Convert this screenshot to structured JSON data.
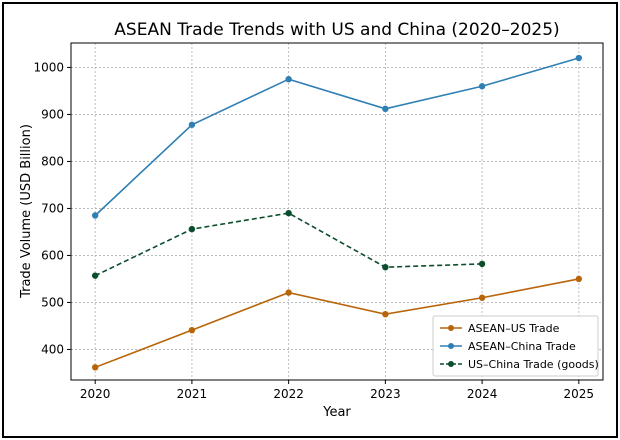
{
  "chart_data": {
    "type": "line",
    "title": "ASEAN Trade Trends with US and China (2020–2025)",
    "xlabel": "Year",
    "ylabel": "Trade Volume (USD Billion)",
    "x": [
      2020,
      2021,
      2022,
      2023,
      2024,
      2025
    ],
    "xlim": [
      2019.75,
      2025.25
    ],
    "ylim": [
      335,
      1052
    ],
    "yticks": [
      400,
      500,
      600,
      700,
      800,
      900,
      1000
    ],
    "grid": true,
    "legend_position": "bottom-right",
    "series": [
      {
        "name": "ASEAN–US Trade",
        "color": "#b8650a",
        "dash": "solid",
        "x": [
          2020,
          2021,
          2022,
          2023,
          2024,
          2025
        ],
        "values": [
          362,
          441,
          521,
          475,
          510,
          550
        ]
      },
      {
        "name": "ASEAN–China Trade",
        "color": "#2f7fb5",
        "dash": "solid",
        "x": [
          2020,
          2021,
          2022,
          2023,
          2024,
          2025
        ],
        "values": [
          685,
          878,
          975,
          912,
          960,
          1020
        ]
      },
      {
        "name": "US–China Trade (goods)",
        "color": "#0b4d2c",
        "dash": "dashed",
        "x": [
          2020,
          2021,
          2022,
          2023,
          2024
        ],
        "values": [
          557,
          656,
          690,
          575,
          582
        ]
      }
    ]
  }
}
